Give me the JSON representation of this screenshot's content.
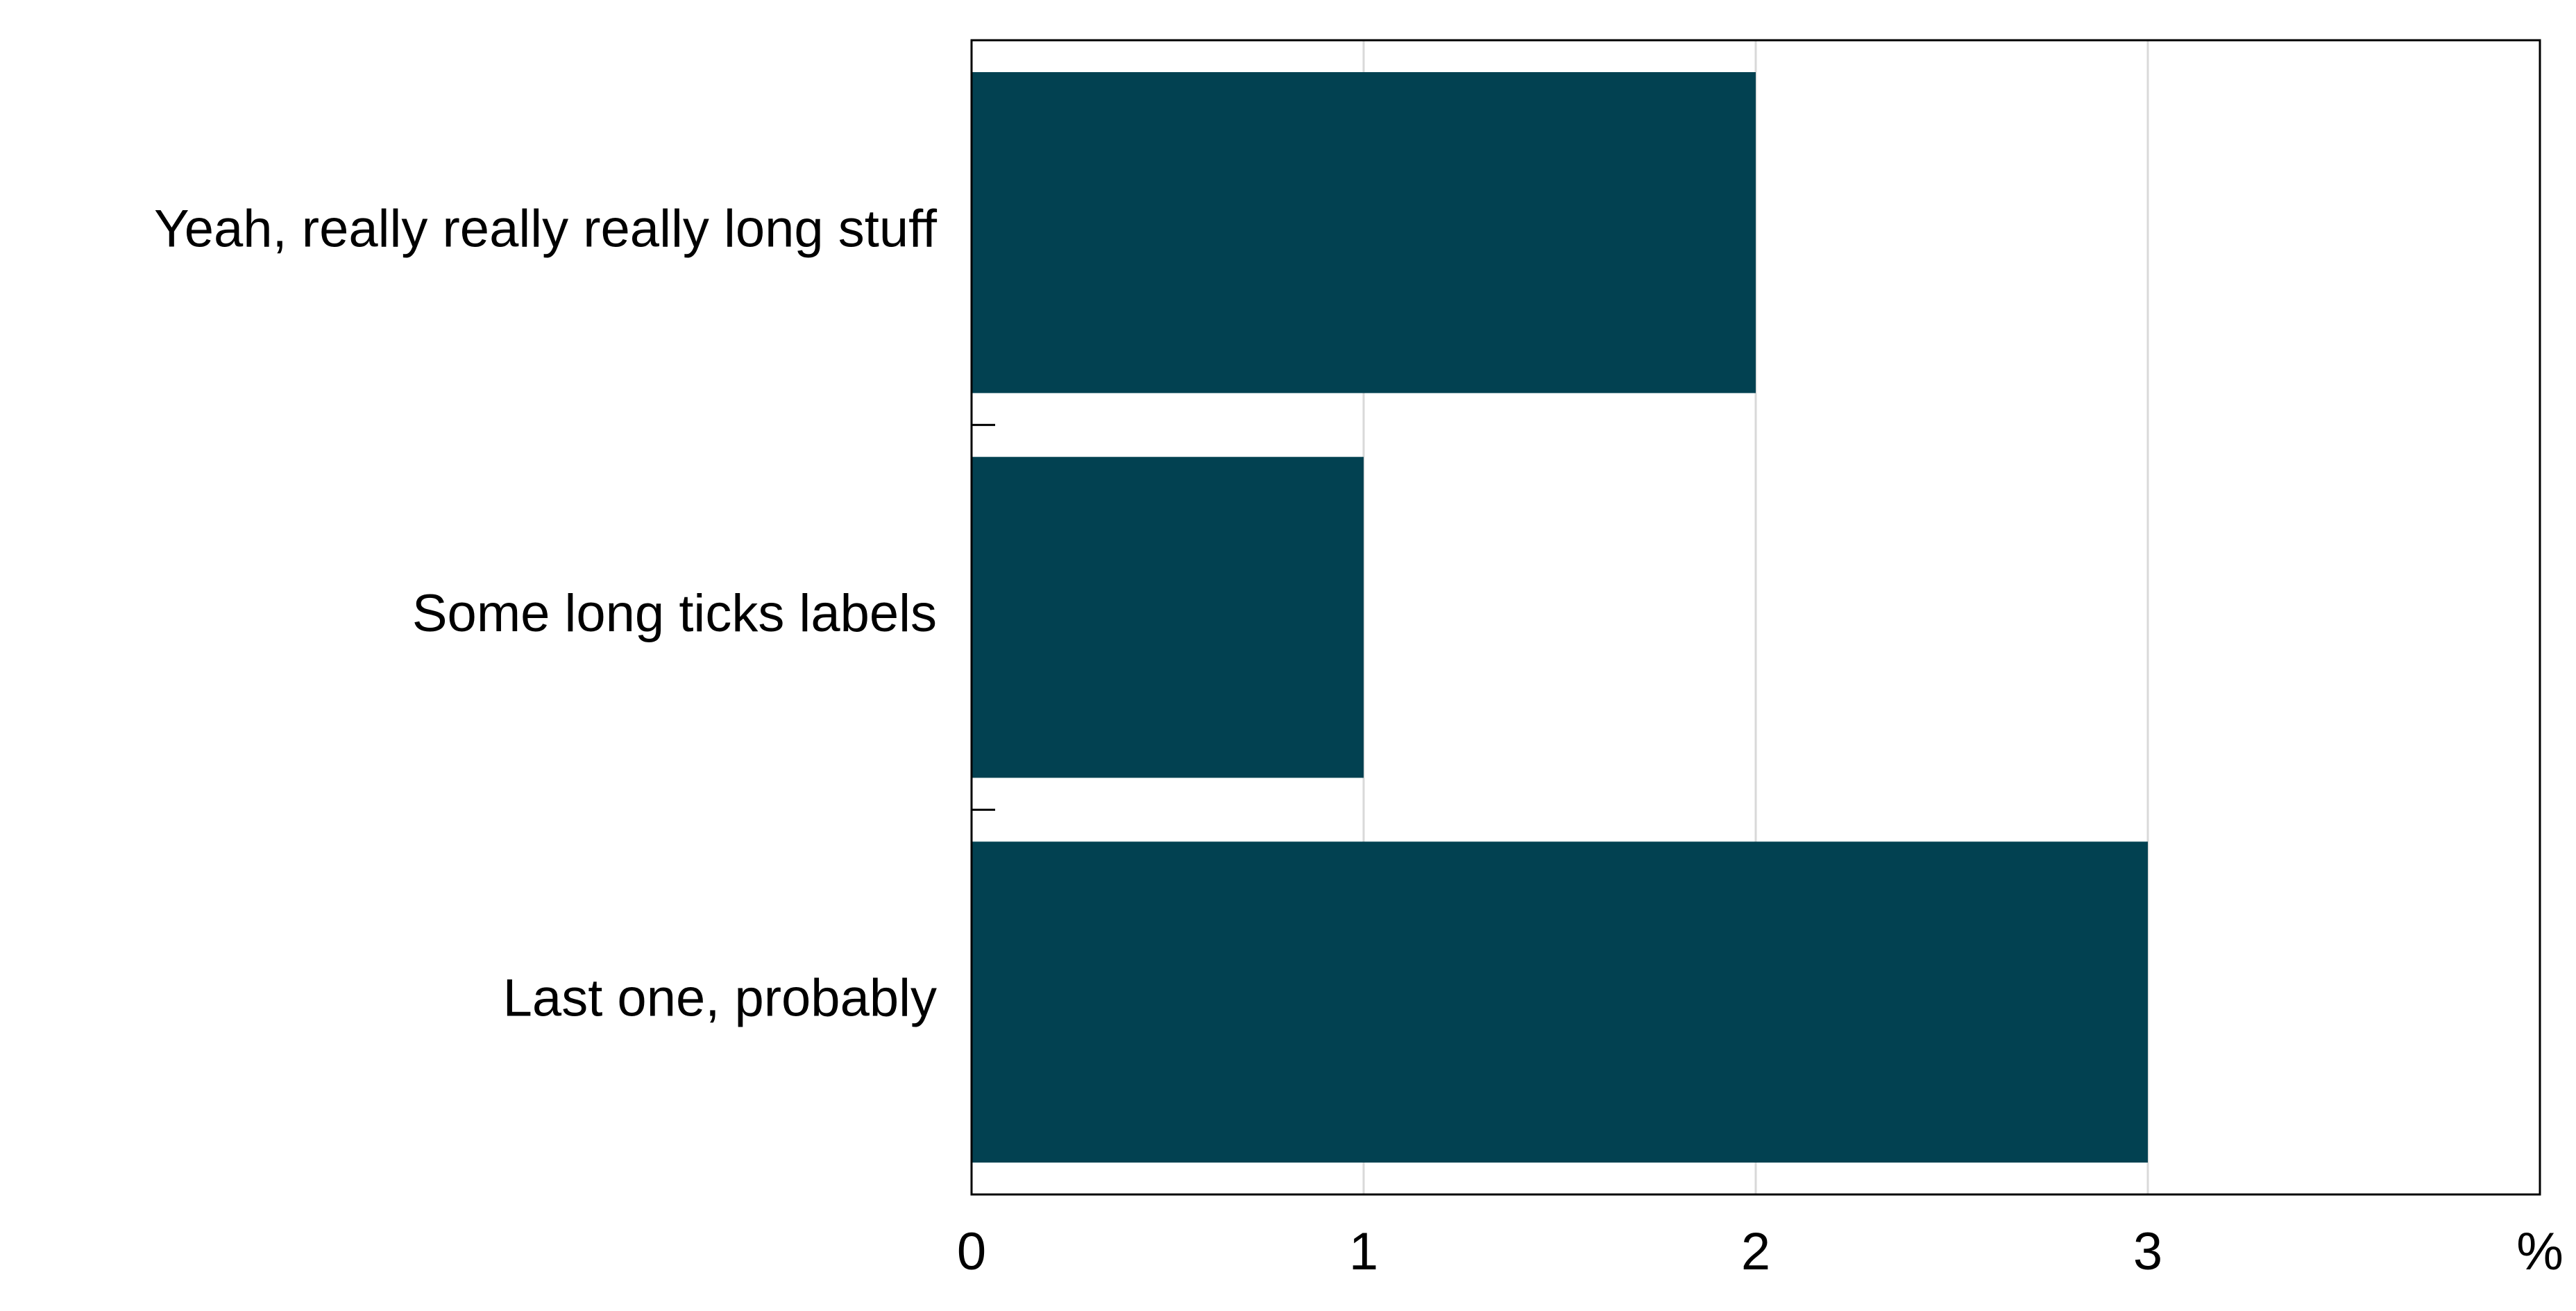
{
  "chart_data": {
    "type": "bar",
    "orientation": "horizontal",
    "categories": [
      "Yeah, really really really long stuff",
      "Some long ticks labels",
      "Last one, probably"
    ],
    "values": [
      2,
      1,
      3
    ],
    "x_ticks": [
      "0",
      "1",
      "2",
      "3"
    ],
    "xlim": [
      0,
      4
    ],
    "x_unit": "%",
    "grid": "vertical",
    "bar_color": "#024151",
    "gridline_color": "#d9d9d9"
  }
}
